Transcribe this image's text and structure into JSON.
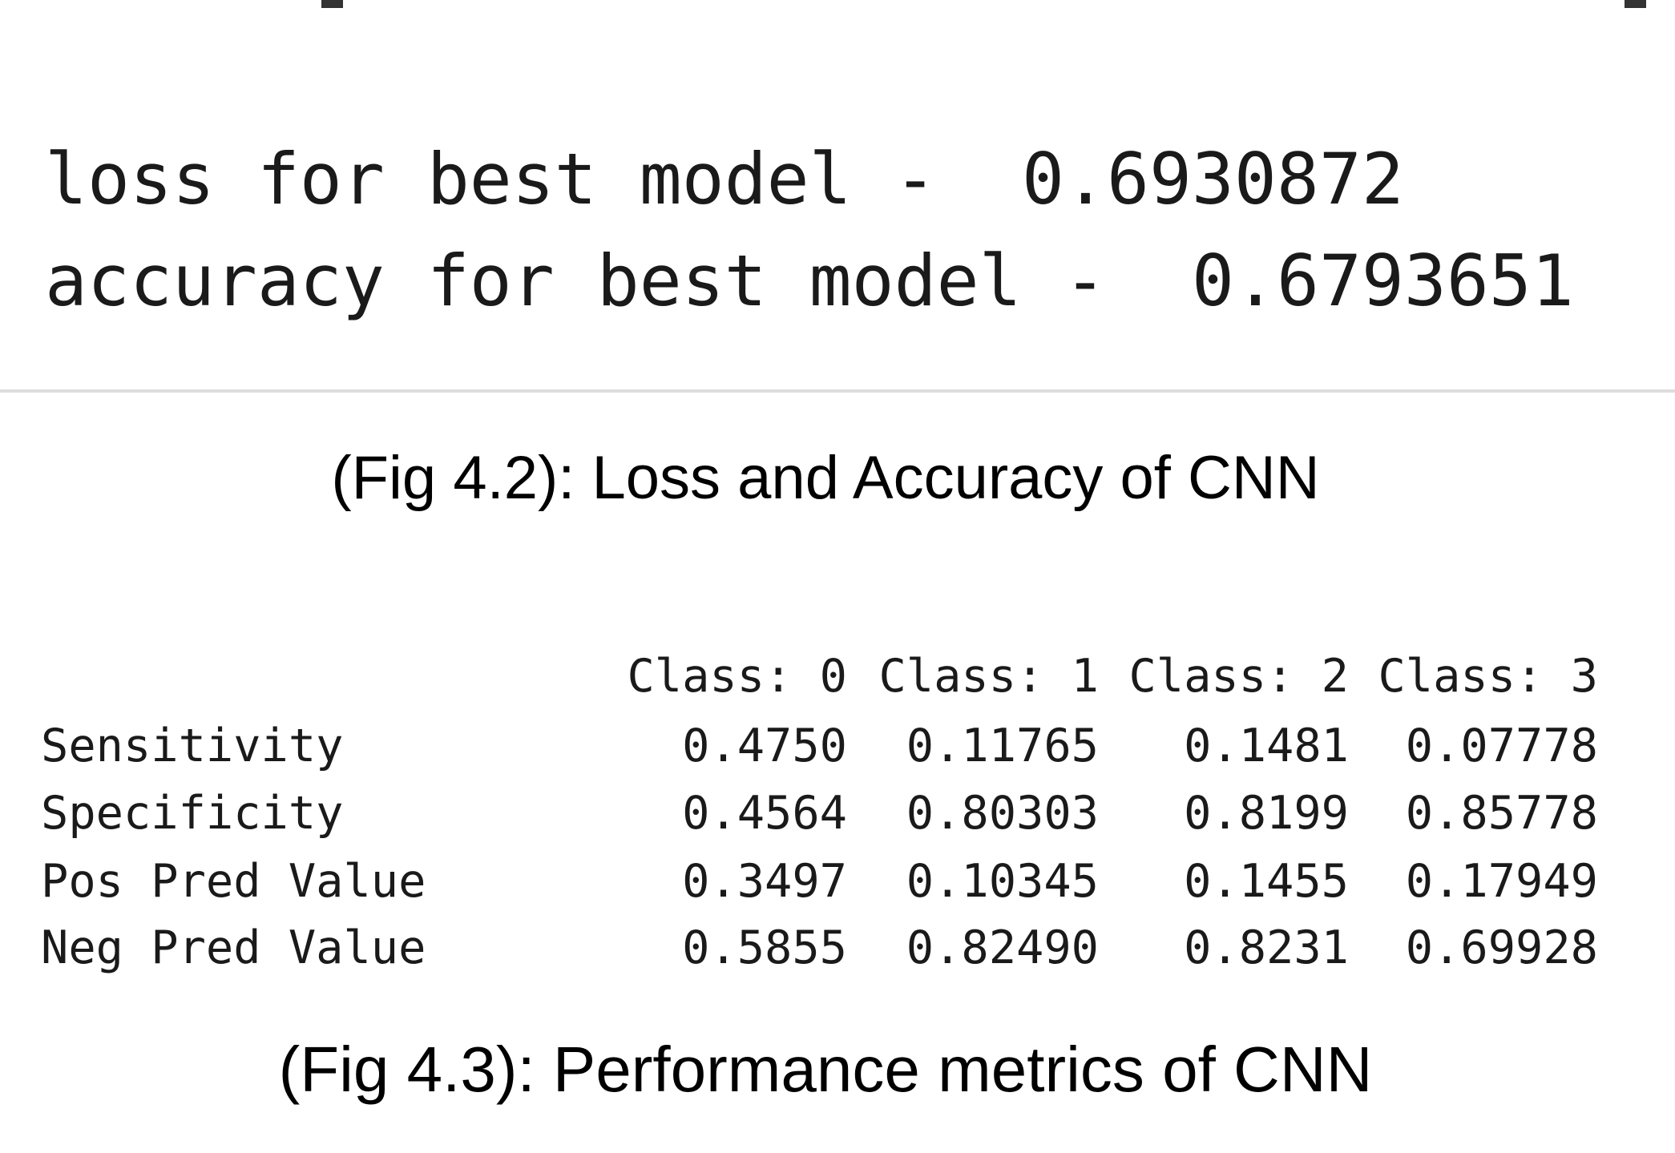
{
  "fig_4_2": {
    "loss_label": "loss for best model -",
    "loss_value": "0.6930872",
    "accuracy_label": "accuracy for best model -",
    "accuracy_value": "0.6793651",
    "caption": "(Fig 4.2): Loss and Accuracy of CNN"
  },
  "fig_4_3": {
    "table": {
      "columns": [
        "Class: 0",
        "Class: 1",
        "Class: 2",
        "Class: 3"
      ],
      "rows": [
        [
          "Sensitivity",
          "0.4750",
          "0.11765",
          "0.1481",
          "0.07778"
        ],
        [
          "Specificity",
          "0.4564",
          "0.80303",
          "0.8199",
          "0.85778"
        ],
        [
          "Pos Pred Value",
          "0.3497",
          "0.10345",
          "0.1455",
          "0.17949"
        ],
        [
          "Neg Pred Value",
          "0.5855",
          "0.82490",
          "0.8231",
          "0.69928"
        ]
      ]
    },
    "caption": "(Fig 4.3): Performance metrics of CNN"
  }
}
